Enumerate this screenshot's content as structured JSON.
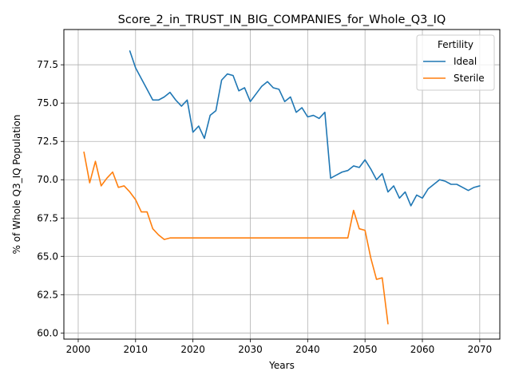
{
  "chart_data": {
    "type": "line",
    "title": "Score_2_in_TRUST_IN_BIG_COMPANIES_for_Whole_Q3_IQ",
    "xlabel": "Years",
    "ylabel": "% of Whole Q3_IQ Population",
    "xlim": [
      1997.5,
      2073.5
    ],
    "ylim": [
      59.6,
      79.8
    ],
    "xticks": [
      2000,
      2010,
      2020,
      2030,
      2040,
      2050,
      2060,
      2070
    ],
    "yticks": [
      60.0,
      62.5,
      65.0,
      67.5,
      70.0,
      72.5,
      75.0,
      77.5
    ],
    "ytick_labels": [
      "60.0",
      "62.5",
      "65.0",
      "67.5",
      "70.0",
      "72.5",
      "75.0",
      "77.5"
    ],
    "grid": true,
    "legend": {
      "title": "Fertility",
      "position": "top-right"
    },
    "series": [
      {
        "name": "Ideal",
        "color": "#1f77b4",
        "x": [
          2009,
          2010,
          2011,
          2012,
          2013,
          2014,
          2015,
          2016,
          2017,
          2018,
          2019,
          2020,
          2021,
          2022,
          2023,
          2024,
          2025,
          2026,
          2027,
          2028,
          2029,
          2030,
          2031,
          2032,
          2033,
          2034,
          2035,
          2036,
          2037,
          2038,
          2039,
          2040,
          2041,
          2042,
          2043,
          2044,
          2045,
          2046,
          2047,
          2048,
          2049,
          2050,
          2051,
          2052,
          2053,
          2054,
          2055,
          2056,
          2057,
          2058,
          2059,
          2060,
          2061,
          2062,
          2063,
          2064,
          2065,
          2066,
          2067,
          2068,
          2069,
          2070
        ],
        "y": [
          78.4,
          77.3,
          76.6,
          75.9,
          75.2,
          75.2,
          75.4,
          75.7,
          75.2,
          74.8,
          75.2,
          73.1,
          73.5,
          72.7,
          74.2,
          74.5,
          76.5,
          76.9,
          76.8,
          75.8,
          76.0,
          75.1,
          75.6,
          76.1,
          76.4,
          76.0,
          75.9,
          75.1,
          75.4,
          74.4,
          74.7,
          74.1,
          74.2,
          74.0,
          74.4,
          70.1,
          70.3,
          70.5,
          70.6,
          70.9,
          70.8,
          71.3,
          70.7,
          70.0,
          70.4,
          69.2,
          69.6,
          68.8,
          69.2,
          68.3,
          69.0,
          68.8,
          69.4,
          69.7,
          70.0,
          69.9,
          69.7,
          69.7,
          69.5,
          69.3,
          69.5,
          69.6
        ]
      },
      {
        "name": "Sterile",
        "color": "#ff7f0e",
        "x": [
          2001,
          2002,
          2003,
          2004,
          2005,
          2006,
          2007,
          2008,
          2009,
          2010,
          2011,
          2012,
          2013,
          2014,
          2015,
          2016,
          2017,
          2018,
          2019,
          2020,
          2021,
          2022,
          2023,
          2024,
          2025,
          2026,
          2027,
          2028,
          2029,
          2030,
          2031,
          2032,
          2033,
          2034,
          2035,
          2036,
          2037,
          2038,
          2039,
          2040,
          2041,
          2042,
          2043,
          2044,
          2045,
          2046,
          2047,
          2048,
          2049,
          2050,
          2051,
          2052,
          2053,
          2054
        ],
        "y": [
          71.8,
          69.8,
          71.2,
          69.6,
          70.1,
          70.5,
          69.5,
          69.6,
          69.2,
          68.7,
          67.9,
          67.9,
          66.8,
          66.4,
          66.1,
          66.2,
          66.2,
          66.2,
          66.2,
          66.2,
          66.2,
          66.2,
          66.2,
          66.2,
          66.2,
          66.2,
          66.2,
          66.2,
          66.2,
          66.2,
          66.2,
          66.2,
          66.2,
          66.2,
          66.2,
          66.2,
          66.2,
          66.2,
          66.2,
          66.2,
          66.2,
          66.2,
          66.2,
          66.2,
          66.2,
          66.2,
          66.2,
          68.0,
          66.8,
          66.7,
          64.9,
          63.5,
          63.6,
          60.6
        ]
      }
    ]
  }
}
